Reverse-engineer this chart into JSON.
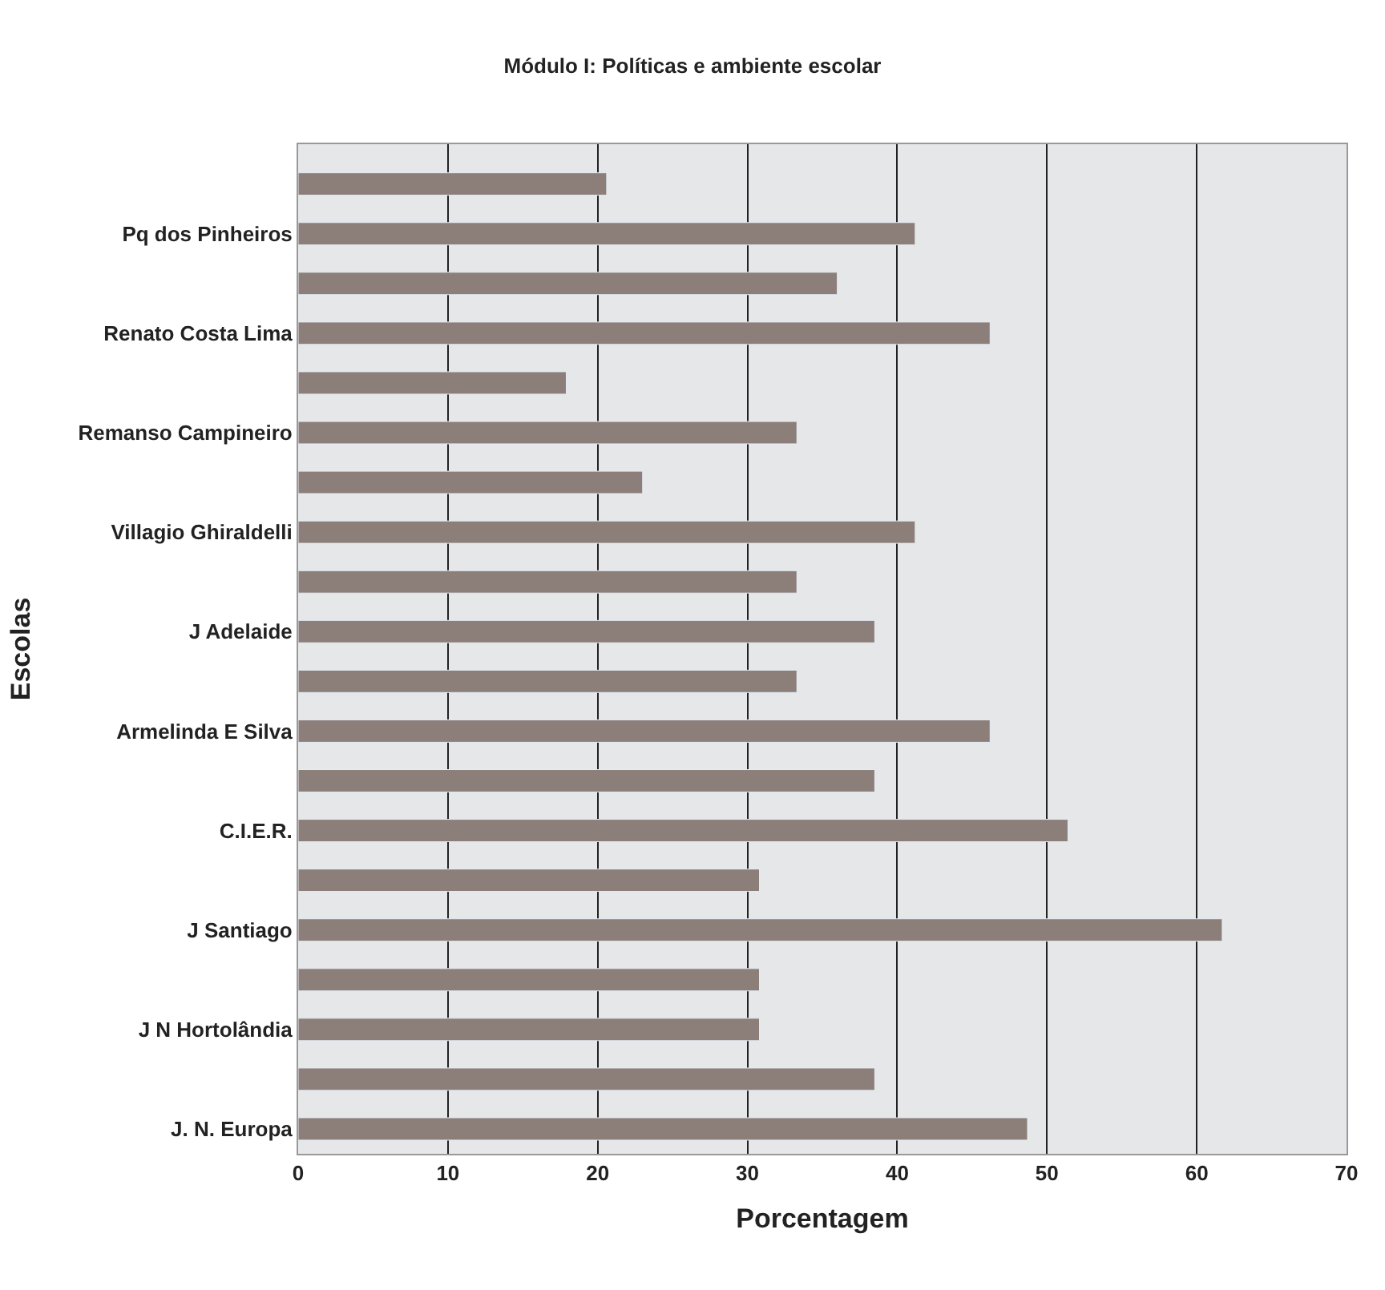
{
  "chart_data": {
    "type": "bar",
    "orientation": "horizontal",
    "title": "Módulo I: Políticas e ambiente escolar",
    "xlabel": "Porcentagem",
    "ylabel": "Escolas",
    "categories": [
      null,
      "Pq dos Pinheiros",
      null,
      "Renato Costa Lima",
      null,
      "Remanso Campineiro",
      null,
      "Villagio Ghiraldelli",
      null,
      "J Adelaide",
      null,
      "Armelinda E Silva",
      null,
      "C.I.E.R.",
      null,
      "J Santiago",
      null,
      "J N Hortolândia",
      null,
      "J. N. Europa"
    ],
    "values": [
      20.6,
      41.2,
      36.0,
      46.2,
      17.9,
      33.3,
      23.0,
      41.2,
      33.3,
      38.5,
      33.3,
      46.2,
      38.5,
      51.4,
      30.8,
      61.7,
      30.8,
      30.8,
      38.5,
      48.7
    ],
    "color": "#8c7f7a",
    "xlim": [
      0,
      70
    ],
    "xticks": [
      0,
      10,
      20,
      30,
      40,
      50,
      60,
      70
    ],
    "grid": "x",
    "legend": false
  }
}
